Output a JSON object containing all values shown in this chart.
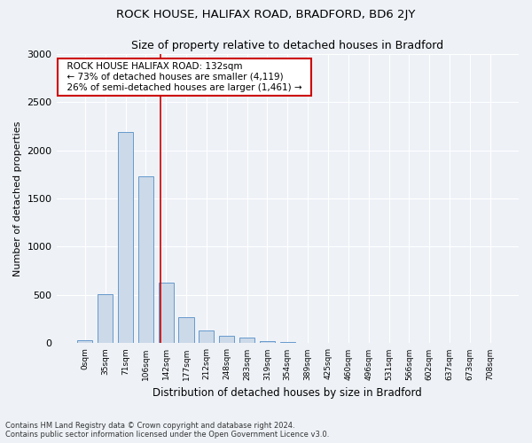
{
  "title": "ROCK HOUSE, HALIFAX ROAD, BRADFORD, BD6 2JY",
  "subtitle": "Size of property relative to detached houses in Bradford",
  "xlabel": "Distribution of detached houses by size in Bradford",
  "ylabel": "Number of detached properties",
  "bar_color": "#ccd9e8",
  "bar_edge_color": "#6699cc",
  "categories": [
    "0sqm",
    "35sqm",
    "71sqm",
    "106sqm",
    "142sqm",
    "177sqm",
    "212sqm",
    "248sqm",
    "283sqm",
    "319sqm",
    "354sqm",
    "389sqm",
    "425sqm",
    "460sqm",
    "496sqm",
    "531sqm",
    "566sqm",
    "602sqm",
    "637sqm",
    "673sqm",
    "708sqm"
  ],
  "values": [
    30,
    510,
    2190,
    1730,
    630,
    270,
    130,
    75,
    55,
    20,
    10,
    5,
    5,
    5,
    5,
    0,
    0,
    0,
    0,
    0,
    0
  ],
  "ylim": [
    0,
    3000
  ],
  "yticks": [
    0,
    500,
    1000,
    1500,
    2000,
    2500,
    3000
  ],
  "property_line_x": 3.72,
  "annotation_text": "  ROCK HOUSE HALIFAX ROAD: 132sqm  \n  ← 73% of detached houses are smaller (4,119)  \n  26% of semi-detached houses are larger (1,461) →  ",
  "annotation_box_color": "#ffffff",
  "annotation_box_edge_color": "#cc0000",
  "red_line_color": "#cc0000",
  "footer_text": "Contains HM Land Registry data © Crown copyright and database right 2024.\nContains public sector information licensed under the Open Government Licence v3.0.",
  "background_color": "#eef2f7",
  "plot_background_color": "#eef2f7",
  "grid_color": "#ffffff"
}
